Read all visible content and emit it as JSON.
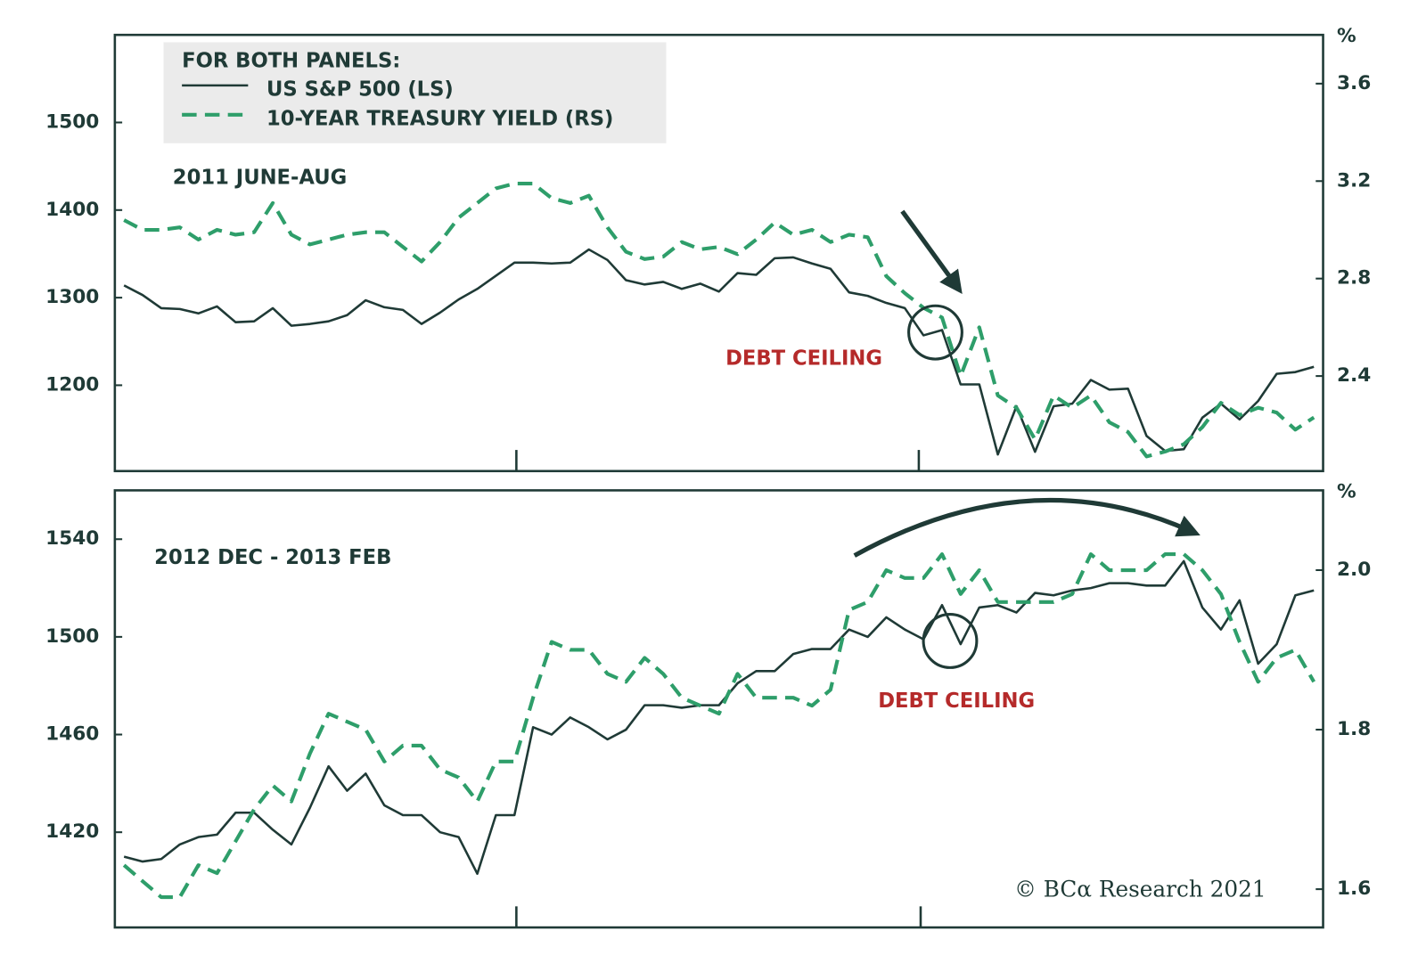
{
  "chart_data": [
    {
      "type": "line",
      "legend_title": "FOR BOTH PANELS:",
      "label": "2011 JUNE-AUG",
      "annotation": "DEBT CEILING",
      "y2_unit": "%",
      "categories": [
        null,
        null,
        null,
        null,
        null,
        null,
        null,
        null,
        null,
        null,
        null,
        null,
        null,
        null,
        null,
        null,
        null,
        null,
        null,
        null,
        null,
        null,
        null,
        null,
        null,
        null,
        null,
        null,
        null,
        null,
        null,
        null,
        null,
        null,
        null,
        null,
        null,
        null,
        null,
        null,
        null,
        null,
        null,
        null,
        null,
        null,
        null,
        null,
        null,
        null,
        null,
        null,
        null,
        null,
        null,
        null,
        null,
        null,
        null,
        null,
        null,
        null,
        null,
        null,
        null
      ],
      "series": [
        {
          "name": "US S&P 500 (LS)",
          "color": "#1f3a36",
          "line_style": "solid",
          "axis": "y",
          "values": [
            1314,
            1303,
            1288,
            1287,
            1282,
            1290,
            1272,
            1273,
            1288,
            1268,
            1270,
            1273,
            1280,
            1297,
            1289,
            1286,
            1270,
            1283,
            1298,
            1310,
            1325,
            1340,
            1340,
            1339,
            1340,
            1355,
            1343,
            1320,
            1315,
            1318,
            1310,
            1316,
            1307,
            1328,
            1326,
            1345,
            1346,
            1339,
            1333,
            1306,
            1302,
            1294,
            1288,
            1257,
            1263,
            1201,
            1201,
            1121,
            1176,
            1124,
            1176,
            1179,
            1206,
            1195,
            1196,
            1142,
            1125,
            1127,
            1163,
            1179,
            1161,
            1182,
            1213,
            1215,
            1221
          ]
        },
        {
          "name": "10-YEAR TREASURY YIELD (RS)",
          "color": "#2e9e6a",
          "line_style": "dashed",
          "axis": "y2",
          "values": [
            3.04,
            3.0,
            3.0,
            3.01,
            2.96,
            3.0,
            2.98,
            2.99,
            3.11,
            2.98,
            2.94,
            2.96,
            2.98,
            2.99,
            2.99,
            2.93,
            2.87,
            2.95,
            3.05,
            3.11,
            3.17,
            3.19,
            3.19,
            3.13,
            3.11,
            3.14,
            3.01,
            2.91,
            2.88,
            2.89,
            2.95,
            2.92,
            2.93,
            2.9,
            2.96,
            3.03,
            2.98,
            3.0,
            2.95,
            2.98,
            2.97,
            2.81,
            2.74,
            2.68,
            2.64,
            2.4,
            2.6,
            2.32,
            2.27,
            2.14,
            2.32,
            2.27,
            2.32,
            2.21,
            2.17,
            2.07,
            2.09,
            2.12,
            2.19,
            2.29,
            2.24,
            2.27,
            2.25,
            2.18,
            2.23
          ]
        }
      ],
      "ylim": [
        1102,
        1600
      ],
      "yticks": [
        1200,
        1300,
        1400,
        1500
      ],
      "y2lim": [
        2.01,
        3.8
      ],
      "y2ticks": [
        2.4,
        2.8,
        3.2,
        3.6
      ]
    },
    {
      "type": "line",
      "label": "2012 DEC - 2013 FEB",
      "annotation": "DEBT CEILING",
      "y2_unit": "%",
      "categories": [
        null,
        null,
        null,
        null,
        null,
        null,
        null,
        null,
        null,
        null,
        null,
        null,
        null,
        null,
        null,
        null,
        null,
        null,
        null,
        null,
        null,
        null,
        null,
        null,
        null,
        null,
        null,
        null,
        null,
        null,
        null,
        null,
        null,
        null,
        null,
        null,
        null,
        null,
        null,
        null,
        null,
        null,
        null,
        null,
        null,
        null,
        null,
        null,
        null,
        null,
        null,
        null,
        null,
        null,
        null,
        null,
        null,
        null,
        null,
        null,
        null,
        null,
        null,
        null,
        null
      ],
      "series": [
        {
          "color": "#1f3a36",
          "line_style": "solid",
          "axis": "y",
          "values": [
            1410,
            1408,
            1409,
            1415,
            1418,
            1419,
            1428,
            1428,
            1421,
            1415,
            1430,
            1447,
            1437,
            1444,
            1431,
            1427,
            1427,
            1420,
            1418,
            1403,
            1427,
            1427,
            1463,
            1460,
            1467,
            1463,
            1458,
            1462,
            1472,
            1472,
            1471,
            1472,
            1472,
            1481,
            1486,
            1486,
            1493,
            1495,
            1495,
            1503,
            1500,
            1508,
            1503,
            1499,
            1513,
            1497,
            1512,
            1513,
            1510,
            1518,
            1517,
            1519,
            1520,
            1522,
            1522,
            1521,
            1521,
            1531,
            1512,
            1503,
            1515,
            1489,
            1497,
            1517,
            1519
          ]
        },
        {
          "color": "#2e9e6a",
          "line_style": "dashed",
          "axis": "y2",
          "values": [
            1.63,
            1.61,
            1.59,
            1.59,
            1.63,
            1.62,
            1.66,
            1.7,
            1.73,
            1.71,
            1.77,
            1.82,
            1.81,
            1.8,
            1.76,
            1.78,
            1.78,
            1.75,
            1.74,
            1.71,
            1.76,
            1.76,
            1.84,
            1.91,
            1.9,
            1.9,
            1.87,
            1.86,
            1.89,
            1.87,
            1.84,
            1.83,
            1.82,
            1.87,
            1.84,
            1.84,
            1.84,
            1.83,
            1.85,
            1.95,
            1.96,
            2.0,
            1.99,
            1.99,
            2.02,
            1.97,
            2.0,
            1.96,
            1.96,
            1.96,
            1.96,
            1.97,
            2.02,
            2.0,
            2.0,
            2.0,
            2.02,
            2.02,
            2.0,
            1.97,
            1.91,
            1.86,
            1.89,
            1.9,
            1.86
          ]
        }
      ],
      "ylim": [
        1381,
        1560
      ],
      "yticks": [
        1420,
        1460,
        1500,
        1540
      ],
      "y2lim": [
        1.552,
        2.1
      ],
      "y2ticks": [
        1.6,
        1.8,
        {
          "value": 2,
          "label": "2.0"
        }
      ]
    }
  ],
  "source": "© BCα Research 2021"
}
